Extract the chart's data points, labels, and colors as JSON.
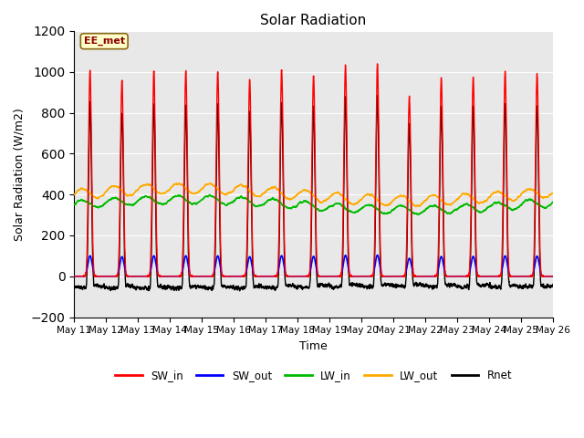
{
  "title": "Solar Radiation",
  "xlabel": "Time",
  "ylabel": "Solar Radiation (W/m2)",
  "ylim": [
    -200,
    1200
  ],
  "yticks": [
    -200,
    0,
    200,
    400,
    600,
    800,
    1000,
    1200
  ],
  "annotation_text": "EE_met",
  "annotation_bg": "#ffffcc",
  "annotation_border": "#8b6914",
  "series_colors": {
    "SW_in": "#ff0000",
    "SW_out": "#0000ff",
    "LW_in": "#00bb00",
    "LW_out": "#ffaa00",
    "Rnet": "#000000"
  },
  "n_days": 15,
  "points_per_day": 288,
  "start_day": 11,
  "bg_color": "#e8e8e8",
  "grid_color": "#ffffff",
  "figsize": [
    6.4,
    4.8
  ],
  "dpi": 100
}
